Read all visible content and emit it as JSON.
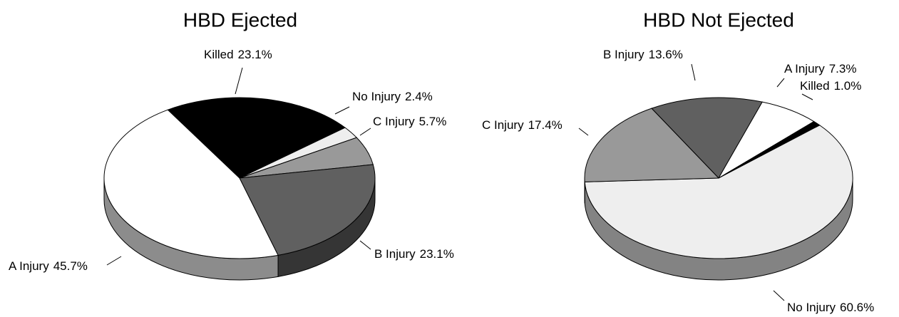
{
  "chart_data": [
    {
      "type": "pie",
      "title": "HBD Ejected",
      "categories": [
        "Killed",
        "No Injury",
        "C Injury",
        "B Injury",
        "A Injury"
      ],
      "values": [
        23.1,
        2.4,
        5.7,
        23.1,
        45.7
      ],
      "value_labels": [
        "23.1%",
        "2.4%",
        "5.7%",
        "23.1%",
        "45.7%"
      ],
      "colors": [
        "#000000",
        "#eeeeee",
        "#999999",
        "#606060",
        "#ffffff"
      ]
    },
    {
      "type": "pie",
      "title": "HBD Not Ejected",
      "categories": [
        "B Injury",
        "A Injury",
        "Killed",
        "No Injury",
        "C Injury"
      ],
      "values": [
        13.6,
        7.3,
        1.0,
        60.6,
        17.4
      ],
      "value_labels": [
        "13.6%",
        "7.3%",
        "1.0%",
        "60.6%",
        "17.4%"
      ],
      "colors": [
        "#606060",
        "#ffffff",
        "#000000",
        "#eeeeee",
        "#999999"
      ]
    }
  ]
}
